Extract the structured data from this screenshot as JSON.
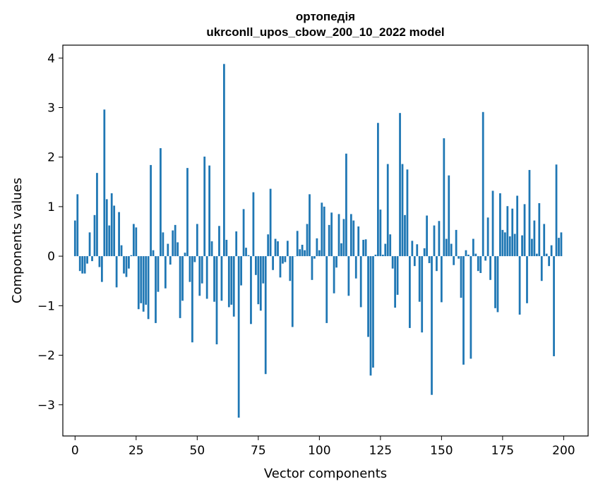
{
  "chart_data": {
    "type": "bar",
    "title": "ортопедія",
    "subtitle": "ukrconll_upos_cbow_200_10_2022 model",
    "xlabel": "Vector components",
    "ylabel": "Components values",
    "xlim": [
      -5,
      210
    ],
    "ylim": [
      -3.63,
      4.26
    ],
    "xticks": [
      0,
      25,
      50,
      75,
      100,
      125,
      150,
      175,
      200
    ],
    "xtick_labels": [
      "0",
      "25",
      "50",
      "75",
      "100",
      "125",
      "150",
      "175",
      "200"
    ],
    "yticks": [
      -3,
      -2,
      -1,
      0,
      1,
      2,
      3,
      4
    ],
    "ytick_labels": [
      "−3",
      "−2",
      "−1",
      "0",
      "1",
      "2",
      "3",
      "4"
    ],
    "bar_color": "#1f77b4",
    "values": [
      0.72,
      1.25,
      -0.3,
      -0.35,
      -0.35,
      -0.15,
      0.48,
      -0.1,
      0.83,
      1.68,
      -0.22,
      -0.52,
      2.96,
      1.15,
      0.62,
      1.27,
      1.02,
      -0.63,
      0.89,
      0.22,
      -0.35,
      -0.42,
      -0.25,
      0.02,
      0.65,
      0.58,
      -1.07,
      -0.95,
      -1.12,
      -0.98,
      -1.27,
      1.84,
      0.12,
      -1.35,
      -0.72,
      2.18,
      0.48,
      -0.65,
      0.25,
      -0.17,
      0.52,
      0.63,
      0.28,
      -1.25,
      -0.9,
      0.07,
      1.78,
      -0.52,
      -1.74,
      -0.12,
      0.65,
      -0.8,
      -0.55,
      2.01,
      -0.86,
      1.83,
      0.3,
      -0.92,
      -1.78,
      0.61,
      -0.9,
      3.88,
      0.33,
      -1.03,
      -0.98,
      -1.22,
      0.5,
      -3.26,
      -0.59,
      0.95,
      0.17,
      0.02,
      -1.37,
      1.29,
      -0.38,
      -0.97,
      -1.1,
      -0.55,
      -2.38,
      0.44,
      1.36,
      -0.28,
      0.35,
      0.3,
      -0.43,
      -0.15,
      -0.12,
      0.31,
      -0.5,
      -1.43,
      0.0,
      0.51,
      0.14,
      0.23,
      0.12,
      0.65,
      1.25,
      -0.48,
      -0.05,
      0.36,
      0.12,
      1.08,
      1.0,
      -1.35,
      0.63,
      0.88,
      -0.75,
      -0.23,
      0.85,
      0.26,
      0.75,
      2.07,
      -0.8,
      0.85,
      0.72,
      -0.45,
      0.6,
      -1.03,
      0.33,
      0.34,
      -1.63,
      -2.41,
      -2.25,
      0.03,
      2.69,
      0.94,
      0.03,
      0.25,
      1.86,
      0.44,
      -0.25,
      -1.04,
      -0.78,
      2.89,
      1.86,
      0.83,
      1.75,
      -1.45,
      0.31,
      -0.2,
      0.24,
      -0.92,
      -1.54,
      0.16,
      0.82,
      -0.14,
      -2.8,
      0.62,
      -0.3,
      0.71,
      -0.93,
      2.38,
      0.35,
      1.63,
      0.25,
      -0.18,
      0.53,
      -0.05,
      -0.84,
      -2.19,
      0.12,
      0.03,
      -2.07,
      0.35,
      0.05,
      -0.3,
      -0.34,
      2.91,
      -0.09,
      0.78,
      -0.48,
      1.32,
      -1.05,
      -1.13,
      1.27,
      0.53,
      0.48,
      1.01,
      0.4,
      0.96,
      0.45,
      1.22,
      -1.18,
      0.42,
      1.05,
      -0.95,
      1.74,
      0.35,
      0.72,
      0.05,
      1.07,
      -0.5,
      0.65,
      0.05,
      -0.2,
      0.22,
      -2.02,
      1.85,
      0.37,
      0.48
    ]
  }
}
